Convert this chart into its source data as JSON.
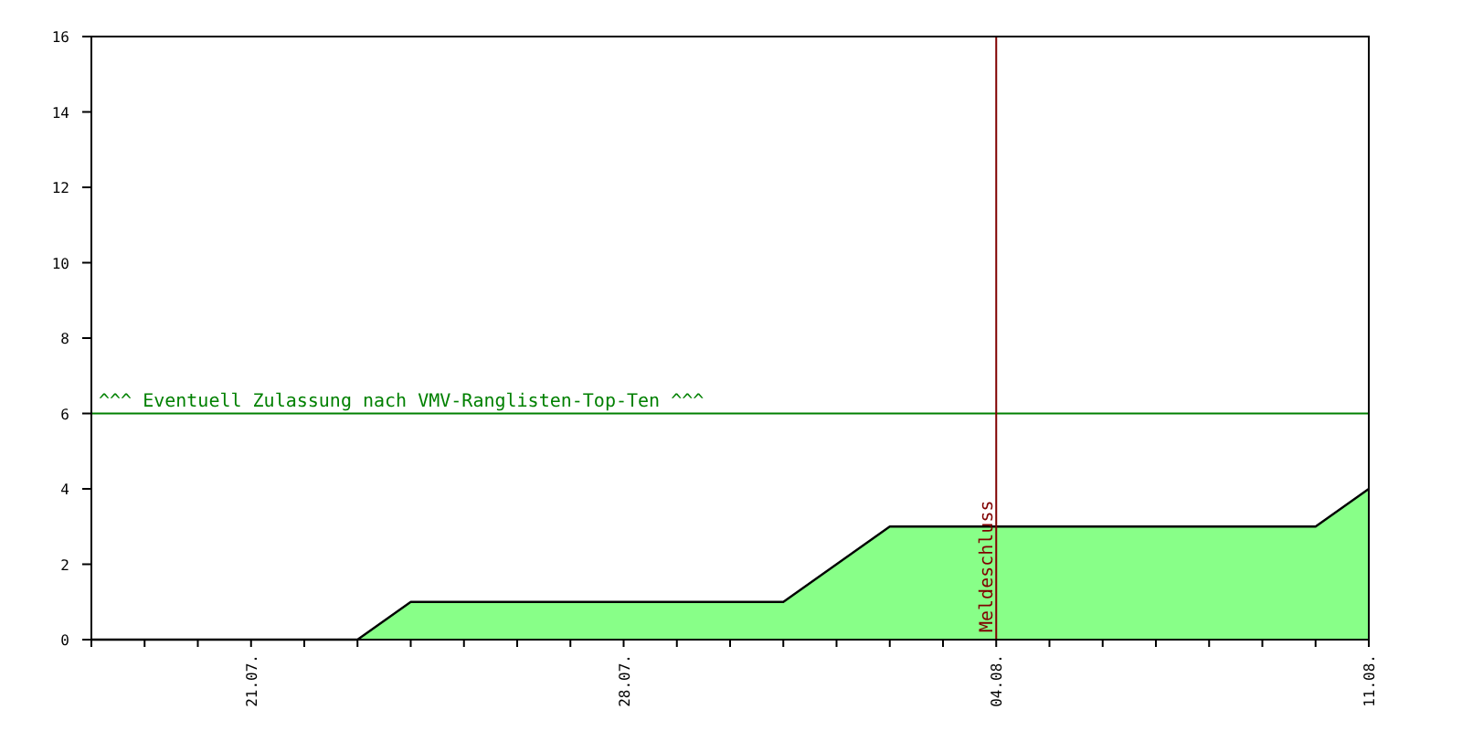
{
  "chart_data": {
    "type": "area",
    "x": [
      "--07-18",
      "--07-19",
      "--07-20",
      "--07-21",
      "--07-22",
      "--07-23",
      "--07-24",
      "--07-25",
      "--07-26",
      "--07-27",
      "--07-28",
      "--07-29",
      "--07-30",
      "--07-31",
      "--08-01",
      "--08-02",
      "--08-03",
      "--08-04",
      "--08-05",
      "--08-06",
      "--08-07",
      "--08-08",
      "--08-09",
      "--08-10",
      "--08-11"
    ],
    "series": [
      {
        "color": "#88ff88",
        "values": [
          0,
          0,
          0,
          0,
          0,
          0,
          1,
          1,
          1,
          1,
          1,
          1,
          1,
          1,
          2,
          3,
          3,
          3,
          3,
          3,
          3,
          3,
          3,
          3,
          4
        ]
      }
    ],
    "xlim": [
      "--07-18",
      "--08-11"
    ],
    "xticks": [
      {
        "value": "--07-18",
        "label": null
      },
      {
        "value": "--07-19",
        "label": null
      },
      {
        "value": "--07-20",
        "label": null
      },
      {
        "value": "--07-21",
        "label": "21.07."
      },
      {
        "value": "--07-22",
        "label": null
      },
      {
        "value": "--07-23",
        "label": null
      },
      {
        "value": "--07-24",
        "label": null
      },
      {
        "value": "--07-25",
        "label": null
      },
      {
        "value": "--07-26",
        "label": null
      },
      {
        "value": "--07-27",
        "label": null
      },
      {
        "value": "--07-28",
        "label": "28.07."
      },
      {
        "value": "--07-29",
        "label": null
      },
      {
        "value": "--07-30",
        "label": null
      },
      {
        "value": "--07-31",
        "label": null
      },
      {
        "value": "--08-01",
        "label": null
      },
      {
        "value": "--08-02",
        "label": null
      },
      {
        "value": "--08-03",
        "label": null
      },
      {
        "value": "--08-04",
        "label": "04.08."
      },
      {
        "value": "--08-05",
        "label": null
      },
      {
        "value": "--08-06",
        "label": null
      },
      {
        "value": "--08-07",
        "label": null
      },
      {
        "value": "--08-08",
        "label": null
      },
      {
        "value": "--08-09",
        "label": null
      },
      {
        "value": "--08-10",
        "label": null
      },
      {
        "value": "--08-11",
        "label": "11.08."
      }
    ],
    "ylim": [
      0,
      16
    ],
    "yticks": [
      0,
      2,
      4,
      6,
      8,
      10,
      12,
      14,
      16
    ],
    "ref_lines": [
      {
        "axis": "y",
        "value": 6,
        "label": "^^^ Eventuell Zulassung nach VMV-Ranglisten-Top-Ten ^^^",
        "color": "#008000"
      },
      {
        "axis": "x",
        "value": "--08-04",
        "label": "Meldeschluss",
        "color": "#800000"
      }
    ]
  }
}
